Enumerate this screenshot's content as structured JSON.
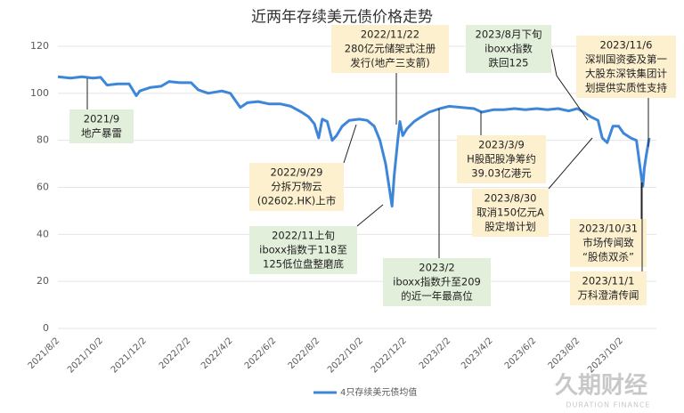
{
  "chart_data": {
    "type": "line",
    "title": "近两年存续美元债价格走势",
    "x": [
      "2021/8/2",
      "2021/8/20",
      "2021/9/5",
      "2021/9/20",
      "2021/10/1",
      "2021/10/10",
      "2021/10/25",
      "2021/11/10",
      "2021/11/20",
      "2021/11/25",
      "2021/12/10",
      "2021/12/25",
      "2022/1/5",
      "2022/1/20",
      "2022/2/5",
      "2022/2/15",
      "2022/3/1",
      "2022/3/20",
      "2022/4/1",
      "2022/4/15",
      "2022/4/25",
      "2022/5/10",
      "2022/5/25",
      "2022/6/10",
      "2022/6/25",
      "2022/7/10",
      "2022/7/20",
      "2022/7/28",
      "2022/8/3",
      "2022/8/8",
      "2022/8/15",
      "2022/8/22",
      "2022/8/28",
      "2022/9/5",
      "2022/9/15",
      "2022/9/29",
      "2022/10/10",
      "2022/10/20",
      "2022/10/28",
      "2022/11/5",
      "2022/11/10",
      "2022/11/14",
      "2022/11/17",
      "2022/11/22",
      "2022/11/25",
      "2022/11/29",
      "2022/12/5",
      "2022/12/15",
      "2022/12/25",
      "2023/1/5",
      "2023/1/20",
      "2023/2/2",
      "2023/2/20",
      "2023/3/9",
      "2023/3/20",
      "2023/4/5",
      "2023/4/20",
      "2023/5/5",
      "2023/5/20",
      "2023/6/5",
      "2023/6/20",
      "2023/7/5",
      "2023/7/20",
      "2023/8/1",
      "2023/8/10",
      "2023/8/20",
      "2023/8/30",
      "2023/9/5",
      "2023/9/12",
      "2023/9/20",
      "2023/9/28",
      "2023/10/5",
      "2023/10/15",
      "2023/10/23",
      "2023/10/31",
      "2023/11/1",
      "2023/11/3",
      "2023/11/6",
      "2023/11/10"
    ],
    "series": [
      {
        "name": "4只存续美元债均值",
        "color": "#3d86d8",
        "values": [
          107,
          106.5,
          107,
          106.5,
          106.8,
          103.5,
          104,
          104,
          99,
          101,
          102.5,
          103,
          105,
          104.5,
          104.5,
          101.5,
          100,
          101,
          100,
          94,
          96,
          96.5,
          95.5,
          95.5,
          94.5,
          92,
          90,
          87,
          81,
          89,
          88,
          80,
          82,
          86,
          88.5,
          89,
          88.5,
          86,
          80,
          70,
          60,
          52,
          65,
          80,
          88,
          82,
          85,
          88,
          90,
          92,
          93.5,
          94.5,
          94,
          93.5,
          92,
          93,
          93,
          93.5,
          93,
          93.5,
          93,
          93.5,
          92.5,
          93.5,
          92,
          90,
          88.5,
          81,
          79,
          86,
          86,
          83,
          81,
          80,
          62,
          60.5,
          68,
          74,
          81
        ]
      }
    ],
    "xlim": [
      "2021/8/2",
      "2023/11/20"
    ],
    "xticks": [
      "2021/8/2",
      "2021/10/2",
      "2021/12/2",
      "2022/2/2",
      "2022/4/2",
      "2022/6/2",
      "2022/8/2",
      "2022/10/2",
      "2022/12/2",
      "2023/2/2",
      "2023/4/2",
      "2023/6/2",
      "2023/8/2",
      "2023/10/2"
    ],
    "ylim": [
      0,
      120
    ],
    "yticks": [
      0,
      20,
      40,
      60,
      80,
      100,
      120
    ],
    "grid": true,
    "legend": "bottom",
    "annotations": [
      {
        "lines": [
          "2021/9",
          "地产暴雷"
        ],
        "color": "#e2efda"
      },
      {
        "lines": [
          "2022/11/22",
          "280亿元储架式注册",
          "发行(地产三支箭)"
        ],
        "color": "#fdf0cf"
      },
      {
        "lines": [
          "2023/8月下旬",
          "iboxx指数",
          "跌回125"
        ],
        "color": "#e2efda"
      },
      {
        "lines": [
          "2023/11/6",
          "深圳国资委及第一",
          "大股东深铁集团计",
          "划提供实质性支持"
        ],
        "color": "#fdf0cf"
      },
      {
        "lines": [
          "2023/3/9",
          "H股配股净筹约",
          "39.03亿港元"
        ],
        "color": "#fdf0cf"
      },
      {
        "lines": [
          "2022/9/29",
          "分拆万物云",
          "(02602.HK)上市"
        ],
        "color": "#fdf0cf"
      },
      {
        "lines": [
          "2022/11上旬",
          "iboxx指数于118至",
          "125低位盘整磨底"
        ],
        "color": "#e2efda"
      },
      {
        "lines": [
          "2023/2",
          "iboxx指数升至209",
          "的近一年最高位"
        ],
        "color": "#e2efda"
      },
      {
        "lines": [
          "2023/8/30",
          "取消150亿元A",
          "股定增计划"
        ],
        "color": "#fdf0cf"
      },
      {
        "lines": [
          "2023/10/31",
          "市场传闻致",
          "“股债双杀”"
        ],
        "color": "#fdf0cf"
      },
      {
        "lines": [
          "2023/11/1",
          "万科澄清传闻"
        ],
        "color": "#fdf0cf"
      }
    ],
    "watermark": [
      "久期财经",
      "DURATION FINANCE"
    ]
  }
}
